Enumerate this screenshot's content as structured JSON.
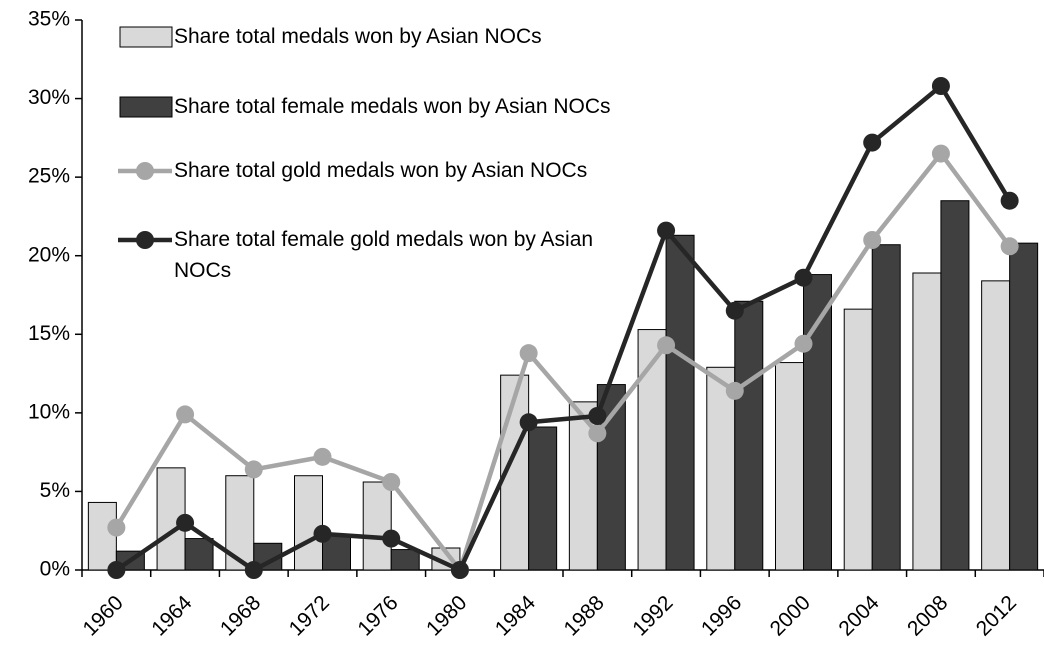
{
  "chart_data": {
    "type": "bar_line",
    "categories": [
      "1960",
      "1964",
      "1968",
      "1972",
      "1976",
      "1980",
      "1984",
      "1988",
      "1992",
      "1996",
      "2000",
      "2004",
      "2008",
      "2012"
    ],
    "series": [
      {
        "name": "Share total medals won by Asian NOCs",
        "kind": "bar",
        "color": "#d9d9d9",
        "values": [
          4.3,
          6.5,
          6.0,
          6.0,
          5.6,
          1.4,
          12.4,
          10.7,
          15.3,
          12.9,
          13.2,
          16.6,
          18.9,
          18.4
        ]
      },
      {
        "name": "Share total female medals won by Asian NOCs",
        "kind": "bar",
        "color": "#404040",
        "values": [
          1.2,
          2.0,
          1.7,
          2.2,
          1.3,
          0,
          9.1,
          11.8,
          21.3,
          17.1,
          18.8,
          20.7,
          23.5,
          20.8
        ]
      },
      {
        "name": "Share total gold medals won by Asian NOCs",
        "kind": "line",
        "color": "#a6a6a6",
        "values": [
          2.7,
          9.9,
          6.4,
          7.2,
          5.6,
          0,
          13.8,
          8.7,
          14.3,
          11.4,
          14.4,
          21.0,
          26.5,
          20.6
        ]
      },
      {
        "name": "Share total female gold medals won by Asian NOCs",
        "kind": "line",
        "color": "#262626",
        "values": [
          0,
          3.0,
          0,
          2.3,
          2.0,
          0,
          9.4,
          9.8,
          21.6,
          16.5,
          18.6,
          27.2,
          30.8,
          23.5
        ]
      }
    ],
    "ylim": [
      0,
      35
    ],
    "yticks": [
      {
        "value": 0,
        "label": "0%"
      },
      {
        "value": 5,
        "label": "5%"
      },
      {
        "value": 10,
        "label": "10%"
      },
      {
        "value": 15,
        "label": "15%"
      },
      {
        "value": 20,
        "label": "20%"
      },
      {
        "value": 25,
        "label": "25%"
      },
      {
        "value": 30,
        "label": "30%"
      },
      {
        "value": 35,
        "label": "35%"
      }
    ],
    "grid": false,
    "legend": "top-left"
  }
}
